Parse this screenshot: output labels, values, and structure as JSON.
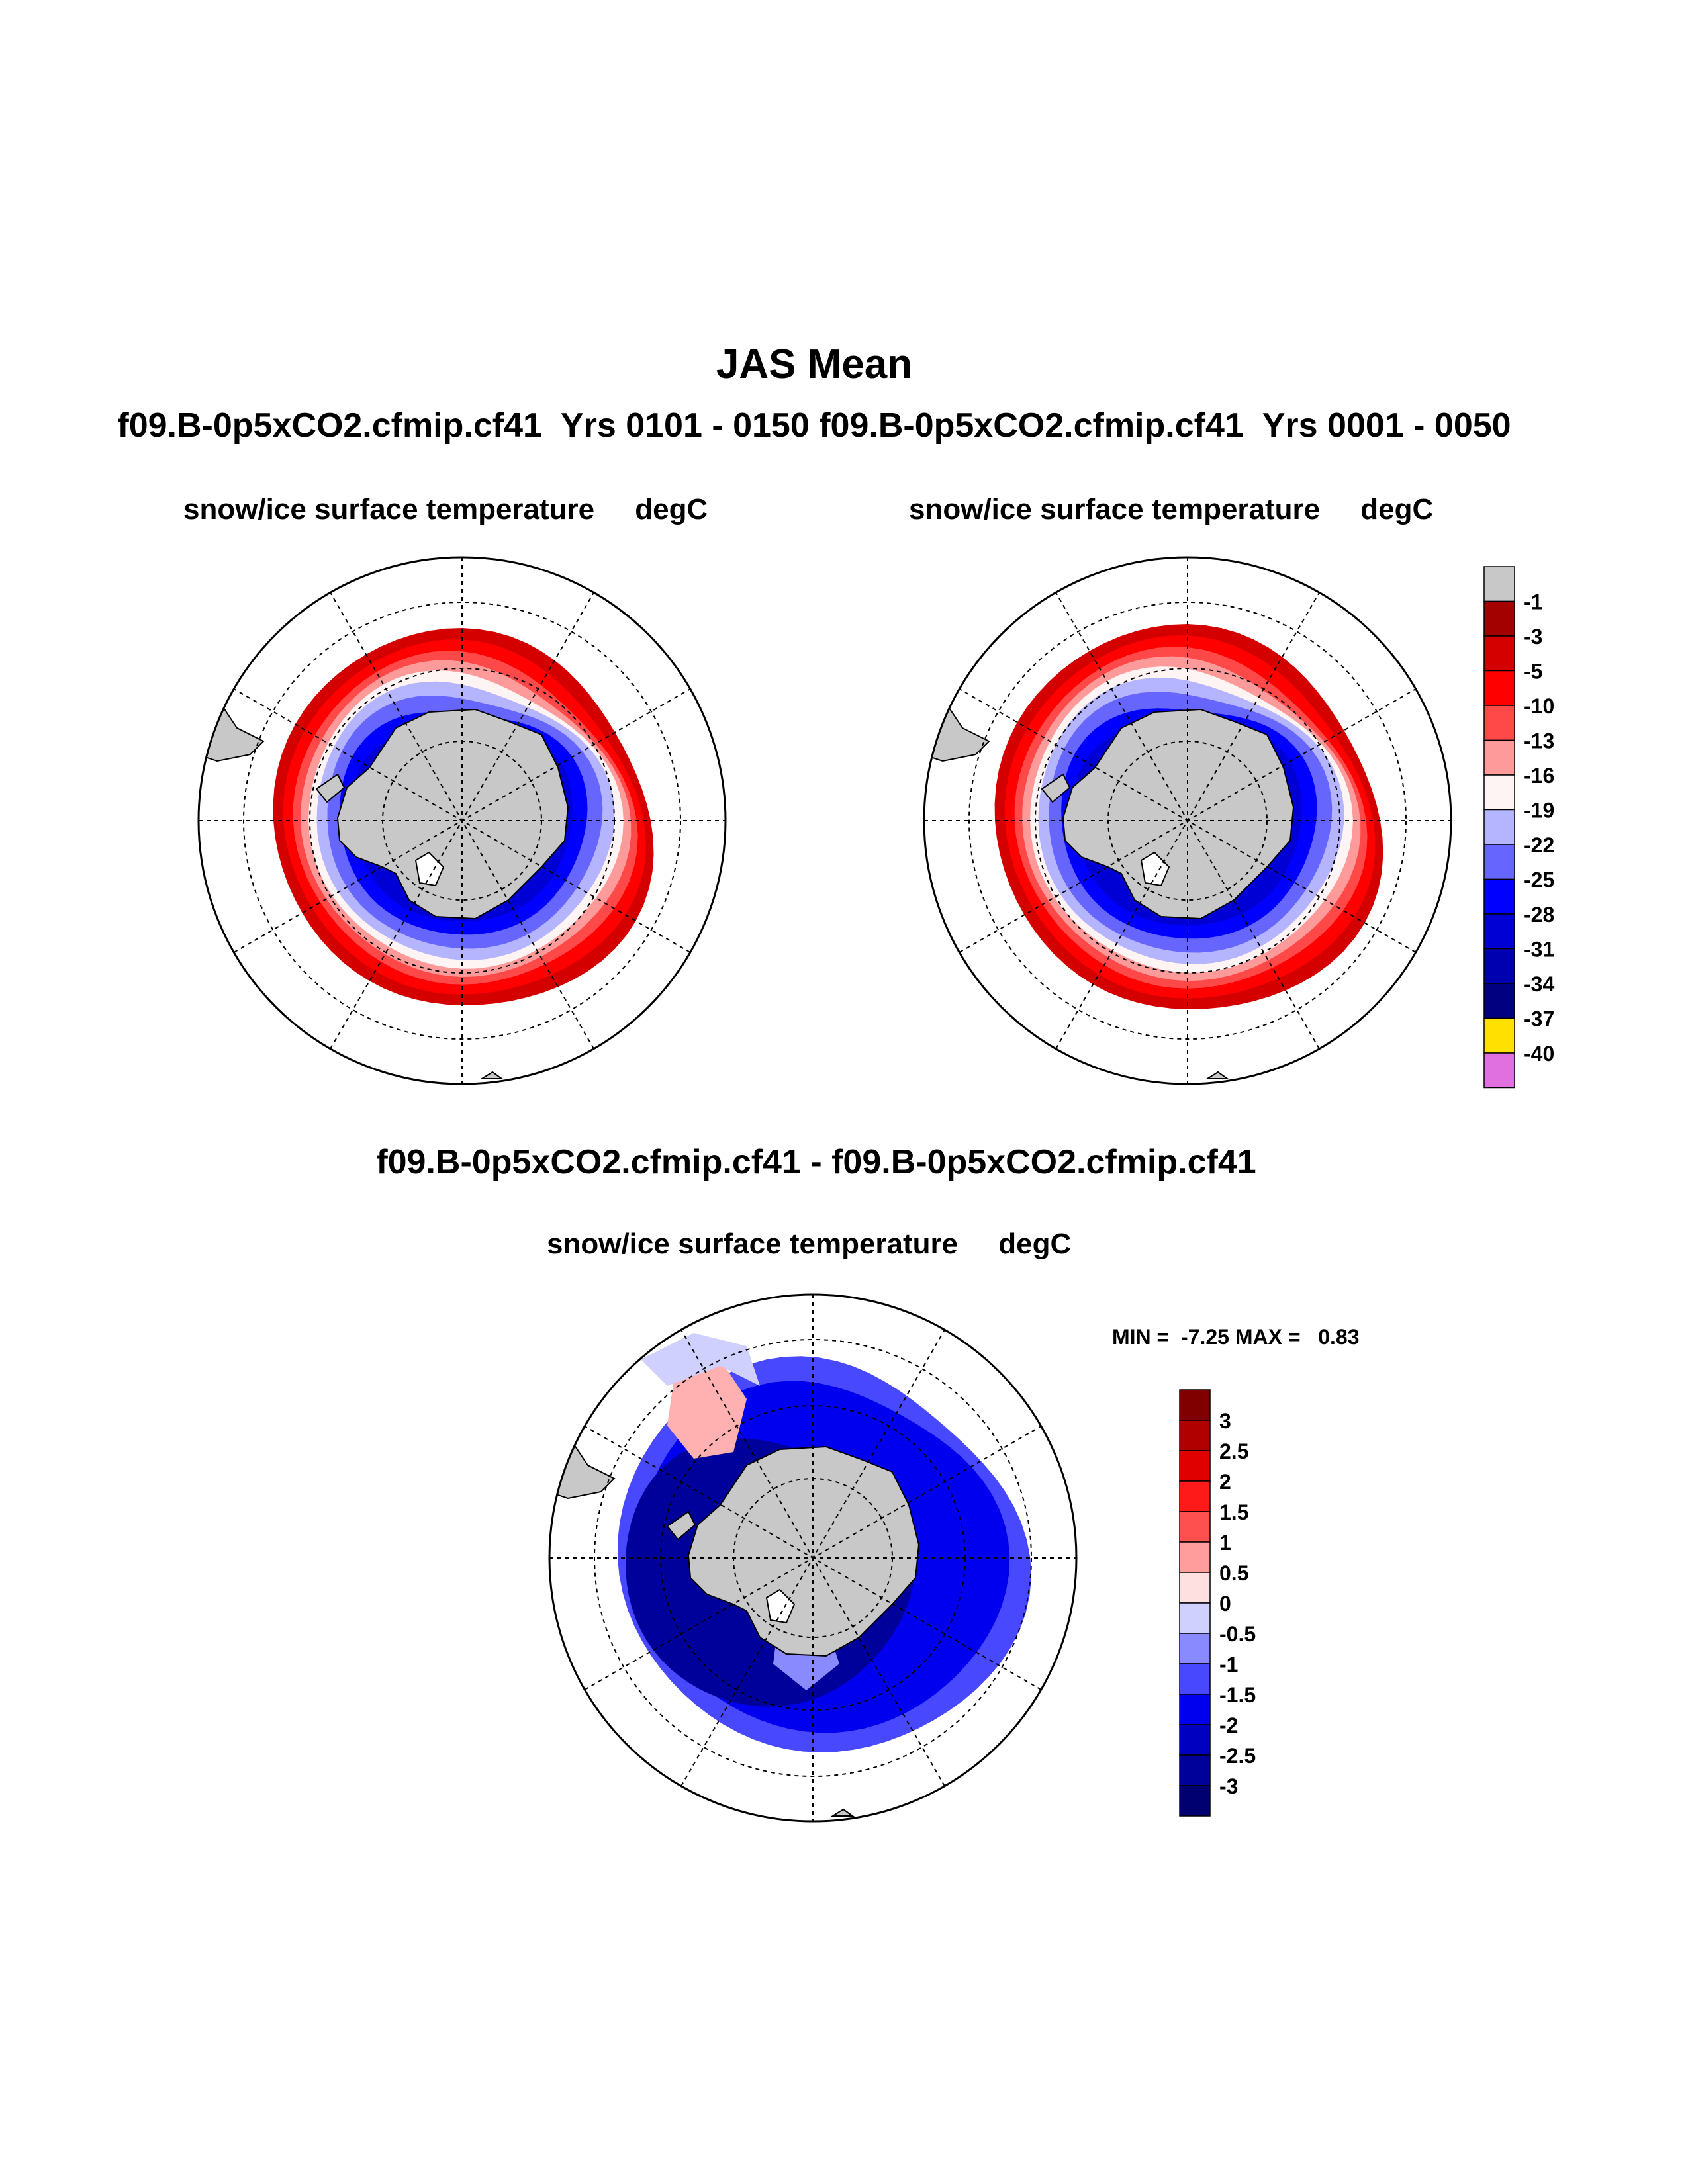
{
  "figure": {
    "title": "JAS Mean",
    "subtitle": "f09.B-0p5xCO2.cfmip.cf41  Yrs 0101 - 0150 f09.B-0p5xCO2.cfmip.cf41  Yrs 0001 - 0050",
    "diff_title": "f09.B-0p5xCO2.cfmip.cf41 - f09.B-0p5xCO2.cfmip.cf41"
  },
  "panels": [
    {
      "label": "snow/ice surface temperature     degC",
      "case": "Yrs 0101 - 0150"
    },
    {
      "label": "snow/ice surface temperature     degC",
      "case": "Yrs 0001 - 0050"
    },
    {
      "label": "snow/ice surface temperature     degC",
      "case": "difference"
    }
  ],
  "diff_stats": {
    "text": "MIN =  -7.25 MAX =   0.83",
    "min": -7.25,
    "max": 0.83
  },
  "colorbar_top": {
    "labels": [
      "-1",
      "-3",
      "-5",
      "-10",
      "-13",
      "-16",
      "-19",
      "-22",
      "-25",
      "-28",
      "-31",
      "-34",
      "-37",
      "-40"
    ],
    "colors": [
      "#c8c8c8",
      "#a30000",
      "#d40000",
      "#ff0000",
      "#ff4848",
      "#ff9a9a",
      "#fff4f4",
      "#b4b4ff",
      "#6666ff",
      "#0000ff",
      "#0000d4",
      "#0000b0",
      "#000080",
      "#ffe000",
      "#e070e0"
    ]
  },
  "colorbar_diff": {
    "labels": [
      "3",
      "2.5",
      "2",
      "1.5",
      "1",
      "0.5",
      "0",
      "-0.5",
      "-1",
      "-1.5",
      "-2",
      "-2.5",
      "-3"
    ],
    "colors": [
      "#800000",
      "#b00000",
      "#e00000",
      "#ff1a1a",
      "#ff5050",
      "#ff9c9c",
      "#ffe0e0",
      "#d0d0ff",
      "#8a8aff",
      "#4848ff",
      "#0000ee",
      "#0000c0",
      "#00009a",
      "#000070"
    ]
  }
}
